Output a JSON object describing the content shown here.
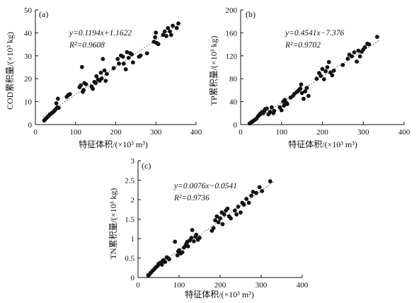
{
  "figure": {
    "background": "#ffffff",
    "point_color": "#111111",
    "line_color": "#444444"
  },
  "chart_data": [
    {
      "type": "scatter",
      "panel_label": "(a)",
      "xlabel": "特征体积/(×10³ m³)",
      "ylabel": "COD累积量/(×10³ kg)",
      "xlim": [
        0,
        400
      ],
      "ylim": [
        0,
        50
      ],
      "xticks": [
        0,
        100,
        200,
        300,
        400
      ],
      "yticks": [
        0,
        10,
        20,
        30,
        40,
        50
      ],
      "grid": false,
      "equation_line1": "y=0.1194x+1.1622",
      "equation_line2": "R²=0.9608",
      "fit": {
        "slope": 0.1194,
        "intercept": 1.1622,
        "x_range": [
          20,
          360
        ]
      },
      "points": [
        [
          22,
          1.8
        ],
        [
          25,
          2.4
        ],
        [
          28,
          2.9
        ],
        [
          32,
          3.6
        ],
        [
          36,
          4.3
        ],
        [
          40,
          4.9
        ],
        [
          44,
          5.4
        ],
        [
          47,
          6.0
        ],
        [
          50,
          6.6
        ],
        [
          53,
          7.1
        ],
        [
          55,
          7.6
        ],
        [
          52,
          9.3
        ],
        [
          56,
          11.3
        ],
        [
          58,
          7.3
        ],
        [
          78,
          12.1
        ],
        [
          82,
          12.9
        ],
        [
          86,
          13.3
        ],
        [
          110,
          16.3
        ],
        [
          113,
          17.1
        ],
        [
          116,
          25.1
        ],
        [
          118,
          14.3
        ],
        [
          120,
          15.1
        ],
        [
          122,
          18.1
        ],
        [
          126,
          17.6
        ],
        [
          140,
          16.6
        ],
        [
          143,
          15.6
        ],
        [
          147,
          18.6
        ],
        [
          150,
          18.1
        ],
        [
          152,
          21.1
        ],
        [
          156,
          19.6
        ],
        [
          160,
          19.1
        ],
        [
          163,
          22.6
        ],
        [
          165,
          20.1
        ],
        [
          168,
          28.6
        ],
        [
          172,
          23.6
        ],
        [
          175,
          19.1
        ],
        [
          178,
          22.1
        ],
        [
          195,
          24.6
        ],
        [
          205,
          28.6
        ],
        [
          208,
          26.6
        ],
        [
          213,
          30.1
        ],
        [
          218,
          29.6
        ],
        [
          220,
          26.6
        ],
        [
          225,
          24.1
        ],
        [
          228,
          31.6
        ],
        [
          232,
          29.1
        ],
        [
          236,
          31.1
        ],
        [
          240,
          30.6
        ],
        [
          243,
          27.1
        ],
        [
          258,
          29.6
        ],
        [
          262,
          30.1
        ],
        [
          278,
          31.1
        ],
        [
          295,
          36.1
        ],
        [
          298,
          38.1
        ],
        [
          300,
          40.1
        ],
        [
          302,
          35.6
        ],
        [
          306,
          35.1
        ],
        [
          318,
          39.1
        ],
        [
          322,
          40.6
        ],
        [
          326,
          38.6
        ],
        [
          330,
          42.1
        ],
        [
          335,
          40.6
        ],
        [
          338,
          39.1
        ],
        [
          342,
          43.1
        ],
        [
          352,
          42.1
        ],
        [
          356,
          44.1
        ]
      ]
    },
    {
      "type": "scatter",
      "panel_label": "(b)",
      "xlabel": "特征体积/(×10³ m³)",
      "ylabel": "TP累积量/(×10³ kg)",
      "xlim": [
        0,
        400
      ],
      "ylim": [
        0,
        200
      ],
      "xticks": [
        0,
        100,
        200,
        300,
        400
      ],
      "yticks": [
        0,
        40,
        80,
        120,
        160,
        200
      ],
      "grid": false,
      "equation_line1": "y=0.4541x−7.376",
      "equation_line2": "R²=0.9702",
      "fit": {
        "slope": 0.4541,
        "intercept": -7.376,
        "x_range": [
          20,
          340
        ]
      },
      "points": [
        [
          22,
          2
        ],
        [
          26,
          4
        ],
        [
          30,
          6
        ],
        [
          34,
          8
        ],
        [
          38,
          10
        ],
        [
          42,
          14
        ],
        [
          46,
          17
        ],
        [
          48,
          19
        ],
        [
          52,
          22
        ],
        [
          55,
          20
        ],
        [
          58,
          24
        ],
        [
          60,
          27
        ],
        [
          64,
          28
        ],
        [
          68,
          18
        ],
        [
          72,
          22
        ],
        [
          76,
          30
        ],
        [
          80,
          20
        ],
        [
          82,
          24
        ],
        [
          96,
          30
        ],
        [
          100,
          25
        ],
        [
          104,
          40
        ],
        [
          106,
          33
        ],
        [
          108,
          43
        ],
        [
          112,
          38
        ],
        [
          114,
          36
        ],
        [
          122,
          47
        ],
        [
          128,
          50
        ],
        [
          132,
          54
        ],
        [
          138,
          57
        ],
        [
          142,
          60
        ],
        [
          146,
          63
        ],
        [
          148,
          70
        ],
        [
          150,
          55
        ],
        [
          154,
          45
        ],
        [
          158,
          58
        ],
        [
          162,
          64
        ],
        [
          166,
          50
        ],
        [
          186,
          80
        ],
        [
          192,
          90
        ],
        [
          196,
          85
        ],
        [
          200,
          97
        ],
        [
          204,
          79
        ],
        [
          208,
          93
        ],
        [
          212,
          100
        ],
        [
          216,
          109
        ],
        [
          220,
          91
        ],
        [
          224,
          86
        ],
        [
          228,
          94
        ],
        [
          250,
          104
        ],
        [
          262,
          115
        ],
        [
          266,
          122
        ],
        [
          272,
          119
        ],
        [
          278,
          126
        ],
        [
          284,
          110
        ],
        [
          288,
          129
        ],
        [
          292,
          119
        ],
        [
          296,
          127
        ],
        [
          300,
          131
        ],
        [
          304,
          135
        ],
        [
          310,
          141
        ],
        [
          314,
          140
        ],
        [
          334,
          153
        ]
      ]
    },
    {
      "type": "scatter",
      "panel_label": "(c)",
      "xlabel": "特征体积/(×10³ m³)",
      "ylabel": "TN累积量/(×10³ kg)",
      "xlim": [
        0,
        400
      ],
      "ylim": [
        0,
        3.0
      ],
      "xticks": [
        0,
        100,
        200,
        300,
        400
      ],
      "yticks": [
        0,
        0.5,
        1.0,
        1.5,
        2.0,
        2.5,
        3.0
      ],
      "grid": false,
      "equation_line1": "y=0.0076x−0.0541",
      "equation_line2": "R²=0.9736",
      "fit": {
        "slope": 0.0076,
        "intercept": -0.0541,
        "x_range": [
          20,
          330
        ]
      },
      "points": [
        [
          25,
          0.05
        ],
        [
          28,
          0.08
        ],
        [
          32,
          0.13
        ],
        [
          36,
          0.18
        ],
        [
          40,
          0.22
        ],
        [
          44,
          0.27
        ],
        [
          48,
          0.3
        ],
        [
          50,
          0.35
        ],
        [
          54,
          0.38
        ],
        [
          58,
          0.33
        ],
        [
          60,
          0.42
        ],
        [
          62,
          0.45
        ],
        [
          66,
          0.4
        ],
        [
          70,
          0.52
        ],
        [
          74,
          0.49
        ],
        [
          76,
          0.47
        ],
        [
          90,
          0.92
        ],
        [
          96,
          0.57
        ],
        [
          98,
          0.67
        ],
        [
          100,
          0.7
        ],
        [
          104,
          0.62
        ],
        [
          108,
          0.65
        ],
        [
          112,
          0.77
        ],
        [
          116,
          0.82
        ],
        [
          118,
          0.87
        ],
        [
          120,
          0.92
        ],
        [
          122,
          0.8
        ],
        [
          126,
          0.95
        ],
        [
          130,
          1.02
        ],
        [
          132,
          1.22
        ],
        [
          136,
          0.93
        ],
        [
          140,
          1.05
        ],
        [
          142,
          1.1
        ],
        [
          146,
          0.97
        ],
        [
          150,
          1.02
        ],
        [
          180,
          1.2
        ],
        [
          184,
          1.27
        ],
        [
          188,
          1.47
        ],
        [
          192,
          1.57
        ],
        [
          196,
          1.42
        ],
        [
          200,
          1.52
        ],
        [
          204,
          1.67
        ],
        [
          206,
          1.37
        ],
        [
          210,
          1.62
        ],
        [
          214,
          1.72
        ],
        [
          218,
          1.77
        ],
        [
          222,
          1.57
        ],
        [
          226,
          1.52
        ],
        [
          236,
          1.72
        ],
        [
          240,
          1.62
        ],
        [
          244,
          1.82
        ],
        [
          250,
          1.67
        ],
        [
          254,
          1.92
        ],
        [
          258,
          1.87
        ],
        [
          264,
          2.02
        ],
        [
          270,
          1.92
        ],
        [
          276,
          2.1
        ],
        [
          280,
          2.2
        ],
        [
          288,
          2.17
        ],
        [
          296,
          2.32
        ],
        [
          302,
          2.22
        ],
        [
          322,
          2.47
        ]
      ]
    }
  ]
}
